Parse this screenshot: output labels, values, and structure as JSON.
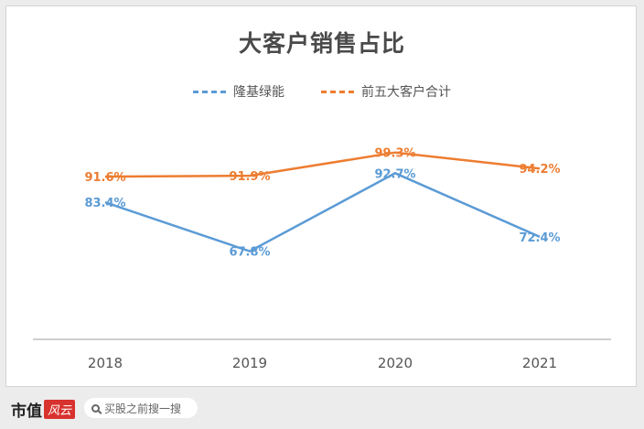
{
  "chart_data": {
    "type": "line",
    "title": "大客户销售占比",
    "categories": [
      "2018",
      "2019",
      "2020",
      "2021"
    ],
    "series": [
      {
        "name": "隆基绿能",
        "values": [
          83.4,
          67.8,
          92.7,
          72.4
        ],
        "labels": [
          "83.4%",
          "67.8%",
          "92.7%",
          "72.4%"
        ],
        "color": "#5b9bd5"
      },
      {
        "name": "前五大客户合计",
        "values": [
          91.6,
          91.9,
          99.3,
          94.2
        ],
        "labels": [
          "91.6%",
          "91.9%",
          "99.3%",
          "94.2%"
        ],
        "color": "#ed7d31"
      }
    ],
    "ylim": [
      40,
      110
    ],
    "grid": false,
    "legend": "top"
  },
  "footer": {
    "logo_text": "市值",
    "logo_badge": "风云",
    "search_placeholder": "买股之前搜一搜"
  }
}
